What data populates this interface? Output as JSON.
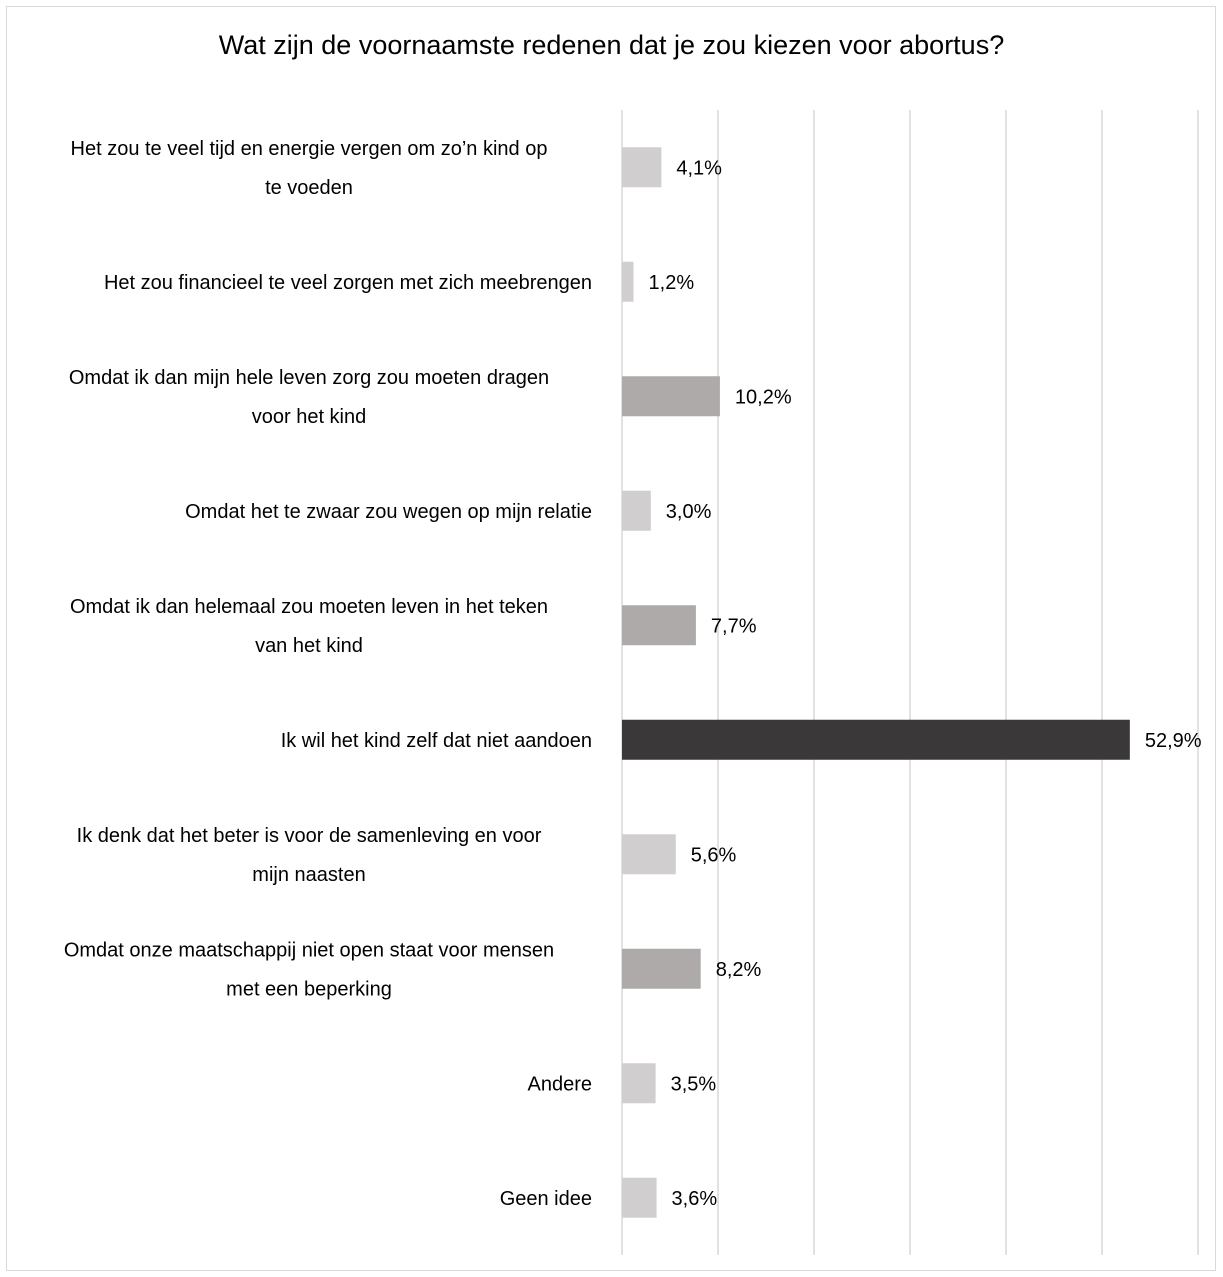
{
  "chart_data": {
    "type": "bar",
    "orientation": "horizontal",
    "title": "Wat zijn de voornaamste redenen dat je zou kiezen voor abortus?",
    "xlabel": "",
    "ylabel": "",
    "xlim": [
      0,
      60
    ],
    "grid": true,
    "legend": "none",
    "categories": [
      [
        "Het zou te veel tijd en energie vergen om zo’n kind op",
        "te voeden"
      ],
      [
        "Het zou financieel te veel zorgen met zich meebrengen"
      ],
      [
        "Omdat ik dan mijn hele leven zorg zou moeten dragen",
        "voor het kind"
      ],
      [
        "Omdat het te zwaar zou wegen op mijn relatie"
      ],
      [
        "Omdat ik dan helemaal zou moeten leven in het teken",
        "van het kind"
      ],
      [
        "Ik wil het kind zelf dat niet aandoen"
      ],
      [
        "Ik denk dat het beter is voor de samenleving en voor",
        "mijn naasten"
      ],
      [
        "Omdat onze maatschappij niet open staat voor mensen",
        "met een beperking"
      ],
      [
        "Andere"
      ],
      [
        "Geen idee"
      ]
    ],
    "values": [
      4.1,
      1.2,
      10.2,
      3.0,
      7.7,
      52.9,
      5.6,
      8.2,
      3.5,
      3.6
    ],
    "data_labels": [
      "4,1%",
      "1,2%",
      "10,2%",
      "3,0%",
      "7,7%",
      "52,9%",
      "5,6%",
      "8,2%",
      "3,5%",
      "3,6%"
    ],
    "colors": [
      "#d0cece",
      "#d0cece",
      "#aeaaaa",
      "#d0cece",
      "#aeaaaa",
      "#3a3838",
      "#d0cece",
      "#aeaaaa",
      "#d0cece",
      "#d0cece"
    ],
    "grid_color": "#d9d9d9"
  }
}
